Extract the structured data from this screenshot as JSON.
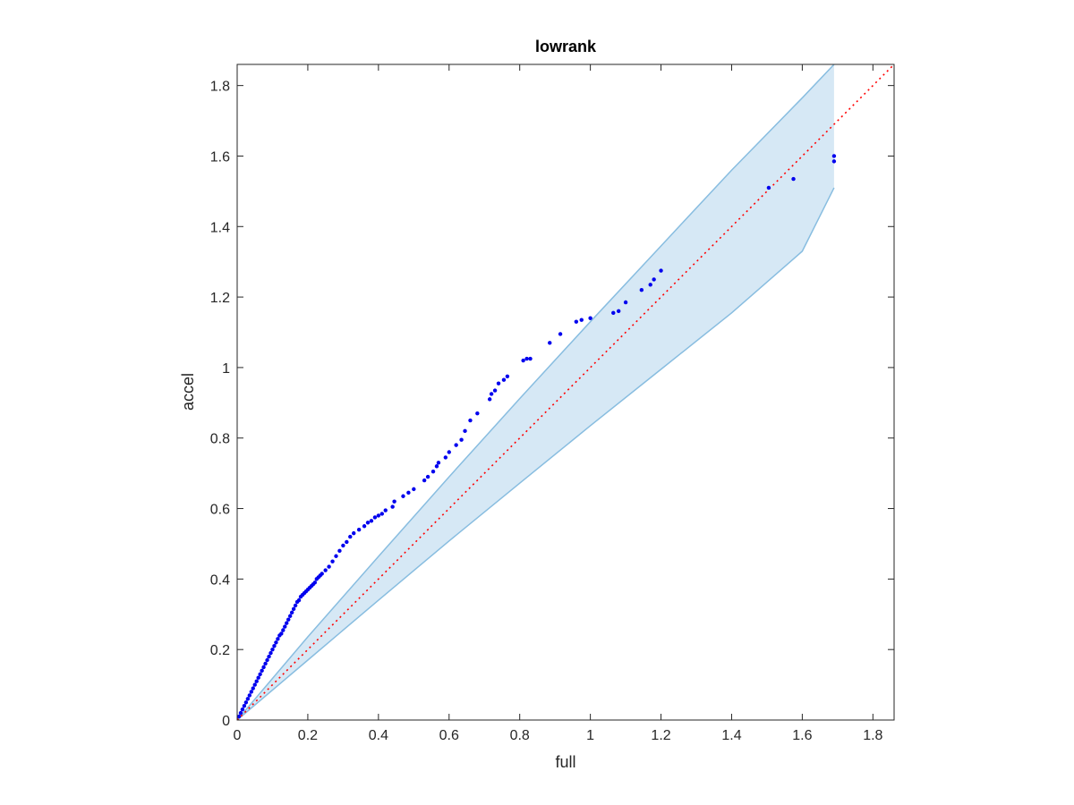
{
  "chart_data": {
    "type": "scatter",
    "title": "lowrank",
    "xlabel": "full",
    "ylabel": "accel",
    "xlim": [
      0,
      1.86
    ],
    "ylim": [
      0,
      1.86
    ],
    "xticks": [
      "0",
      "0.2",
      "0.4",
      "0.6",
      "0.8",
      "1",
      "1.2",
      "1.4",
      "1.6",
      "1.8"
    ],
    "yticks": [
      "0",
      "0.2",
      "0.4",
      "0.6",
      "0.8",
      "1",
      "1.2",
      "1.4",
      "1.6",
      "1.8"
    ],
    "grid": false,
    "legend": "none",
    "colors": {
      "points": "#0000ee",
      "reference_line": "#ff0000",
      "band_fill": "#d6e8f5",
      "band_edge": "#88bde0",
      "axes": "#262626"
    },
    "reference_line": {
      "style": "dotted",
      "from": [
        0,
        0
      ],
      "to": [
        1.86,
        1.86
      ]
    },
    "confidence_band": {
      "x": [
        0,
        0.2,
        0.4,
        0.6,
        0.8,
        1.0,
        1.2,
        1.4,
        1.6,
        1.69
      ],
      "upper": [
        0,
        0.236,
        0.464,
        0.69,
        0.912,
        1.13,
        1.345,
        1.56,
        1.765,
        1.86
      ],
      "lower": [
        0,
        0.17,
        0.34,
        0.508,
        0.672,
        0.835,
        0.995,
        1.155,
        1.33,
        1.51
      ]
    },
    "series": [
      {
        "x": [
          0.005,
          0.01,
          0.015,
          0.02,
          0.025,
          0.03,
          0.035,
          0.04,
          0.045,
          0.05,
          0.055,
          0.06,
          0.065,
          0.07,
          0.075,
          0.08,
          0.085,
          0.09,
          0.095,
          0.1,
          0.105,
          0.11,
          0.115,
          0.12,
          0.125,
          0.13,
          0.135,
          0.14,
          0.145,
          0.15,
          0.155,
          0.16,
          0.165,
          0.17,
          0.175,
          0.18,
          0.185,
          0.19,
          0.195,
          0.2,
          0.205,
          0.21,
          0.215,
          0.22,
          0.225,
          0.23,
          0.235,
          0.24,
          0.25,
          0.26,
          0.27,
          0.28,
          0.29,
          0.3,
          0.31,
          0.32,
          0.33,
          0.345,
          0.36,
          0.37,
          0.38,
          0.39,
          0.4,
          0.41,
          0.42,
          0.44,
          0.445,
          0.47,
          0.485,
          0.5,
          0.53,
          0.54,
          0.555,
          0.565,
          0.57,
          0.59,
          0.6,
          0.62,
          0.635,
          0.645,
          0.66,
          0.68,
          0.715,
          0.72,
          0.73,
          0.74,
          0.755,
          0.765,
          0.81,
          0.82,
          0.83,
          0.885,
          0.915,
          0.96,
          0.975,
          1.0,
          1.065,
          1.08,
          1.1,
          1.145,
          1.17,
          1.18,
          1.2,
          1.505,
          1.575,
          1.69,
          1.69
        ],
        "y": [
          0.01,
          0.02,
          0.03,
          0.04,
          0.05,
          0.06,
          0.07,
          0.08,
          0.09,
          0.1,
          0.11,
          0.12,
          0.13,
          0.14,
          0.15,
          0.16,
          0.17,
          0.18,
          0.19,
          0.2,
          0.21,
          0.22,
          0.23,
          0.24,
          0.245,
          0.255,
          0.265,
          0.275,
          0.285,
          0.295,
          0.305,
          0.315,
          0.325,
          0.335,
          0.34,
          0.35,
          0.355,
          0.36,
          0.365,
          0.37,
          0.375,
          0.38,
          0.385,
          0.39,
          0.4,
          0.405,
          0.41,
          0.415,
          0.425,
          0.435,
          0.45,
          0.465,
          0.48,
          0.495,
          0.505,
          0.52,
          0.53,
          0.54,
          0.55,
          0.56,
          0.565,
          0.575,
          0.58,
          0.585,
          0.595,
          0.605,
          0.62,
          0.635,
          0.645,
          0.655,
          0.68,
          0.69,
          0.705,
          0.72,
          0.73,
          0.745,
          0.76,
          0.78,
          0.795,
          0.82,
          0.85,
          0.87,
          0.91,
          0.925,
          0.935,
          0.955,
          0.965,
          0.975,
          1.02,
          1.025,
          1.025,
          1.07,
          1.095,
          1.13,
          1.135,
          1.14,
          1.155,
          1.16,
          1.185,
          1.22,
          1.235,
          1.25,
          1.275,
          1.51,
          1.535,
          1.585,
          1.6
        ]
      }
    ]
  }
}
